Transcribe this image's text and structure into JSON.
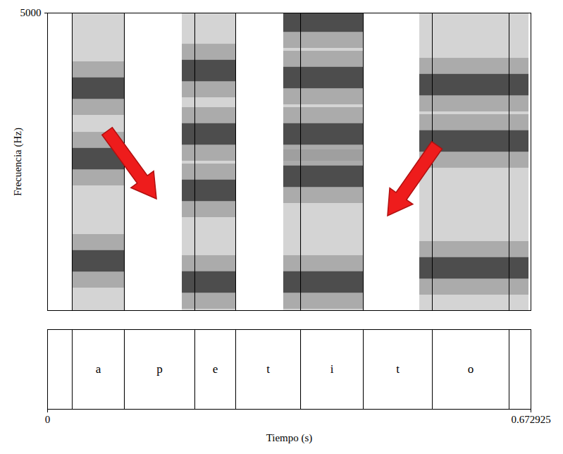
{
  "chart_data": {
    "type": "spectrogram",
    "xlabel": "Tiempo (s)",
    "ylabel": "Frecuencia (Hz)",
    "xlim": [
      0,
      0.672925
    ],
    "xticks": [
      0,
      0.672925
    ],
    "ylim": [
      0,
      5000
    ],
    "yticks": [
      5000
    ],
    "segments": [
      {
        "label": "a",
        "start": 0.0343,
        "end": 0.1069
      },
      {
        "label": "p",
        "start": 0.1069,
        "end": 0.205
      },
      {
        "label": "e",
        "start": 0.205,
        "end": 0.2619
      },
      {
        "label": "t",
        "start": 0.2619,
        "end": 0.3522
      },
      {
        "label": "i",
        "start": 0.3522,
        "end": 0.4395
      },
      {
        "label": "t",
        "start": 0.4395,
        "end": 0.5356
      },
      {
        "label": "o",
        "start": 0.5356,
        "end": 0.6425
      }
    ],
    "energy": [
      {
        "start": 0.0343,
        "end": 0.1069,
        "formants": [
          829,
          2547,
          3732
        ]
      },
      {
        "start": 0.1874,
        "end": 0.2619,
        "formants": [
          474,
          2014,
          2962,
          4028
        ]
      },
      {
        "start": 0.3286,
        "end": 0.4395,
        "formants": [
          474,
          2251,
          2962,
          3910,
          4858
        ]
      },
      {
        "start": 0.518,
        "end": 0.67,
        "formants": [
          711,
          2844,
          3791
        ]
      }
    ]
  }
}
